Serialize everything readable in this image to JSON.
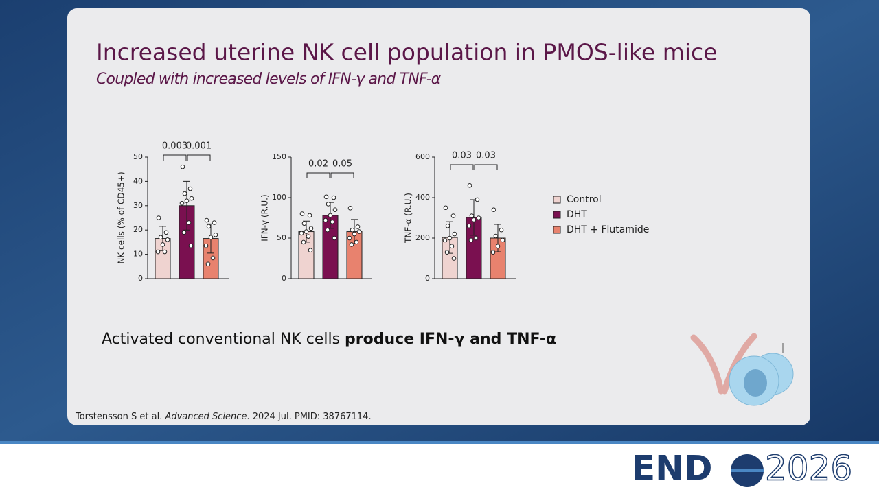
{
  "title": "Increased uterine NK cell population in PMOS-like mice",
  "subtitle": "Coupled with increased levels of IFN-γ and TNF-α",
  "body": {
    "regular": "Activated conventional NK cells ",
    "bold": "produce IFN-γ and TNF-α"
  },
  "citation": {
    "authors": "Torstensson S et al. ",
    "journal": "Advanced Science",
    "rest": ". 2024 Jul. PMID: 38767114."
  },
  "logo": {
    "left": "END",
    "right": "2026"
  },
  "legend": [
    {
      "name": "Control",
      "color": "#efd3d0"
    },
    {
      "name": "DHT",
      "color": "#7a1050"
    },
    {
      "name": "DHT + Flutamide",
      "color": "#e8826e"
    }
  ],
  "chart_data": [
    {
      "type": "bar",
      "y_label": "NK cells (% of CD45+)",
      "ylim": [
        0,
        50
      ],
      "yticks": [
        0,
        10,
        20,
        30,
        40,
        50
      ],
      "values": [
        16.5,
        30,
        16.5
      ],
      "errors": [
        5,
        10,
        6
      ],
      "points": [
        [
          25,
          19,
          17,
          16,
          14,
          11,
          11
        ],
        [
          46,
          37,
          35,
          33,
          32,
          31,
          23,
          19,
          13.5
        ],
        [
          24,
          23,
          21.5,
          18,
          17,
          13.5,
          8.5,
          6
        ]
      ],
      "annotations": [
        "0.003",
        "0.001"
      ]
    },
    {
      "type": "bar",
      "y_label": "IFN-γ (R.U.)",
      "ylim": [
        0,
        150
      ],
      "yticks": [
        0,
        50,
        100,
        150
      ],
      "values": [
        58,
        78,
        58
      ],
      "errors": [
        13,
        16,
        15
      ],
      "points": [
        [
          80,
          78,
          68,
          62,
          58,
          56,
          52,
          45,
          35
        ],
        [
          101,
          100,
          92,
          85,
          78,
          72,
          70,
          60,
          50
        ],
        [
          87,
          64,
          60,
          58,
          55,
          50,
          45,
          42
        ]
      ],
      "annotations": [
        "0.02",
        "0.05"
      ]
    },
    {
      "type": "bar",
      "y_label": "TNF-α (R.U.)",
      "ylim": [
        0,
        600
      ],
      "yticks": [
        0,
        200,
        400,
        600
      ],
      "values": [
        203,
        302,
        200
      ],
      "errors": [
        78,
        88,
        68
      ],
      "points": [
        [
          350,
          310,
          260,
          220,
          200,
          190,
          160,
          130,
          100
        ],
        [
          460,
          390,
          310,
          300,
          290,
          260,
          200,
          190
        ],
        [
          340,
          240,
          210,
          190,
          160,
          130
        ]
      ],
      "annotations": [
        "0.03",
        "0.03"
      ]
    }
  ]
}
